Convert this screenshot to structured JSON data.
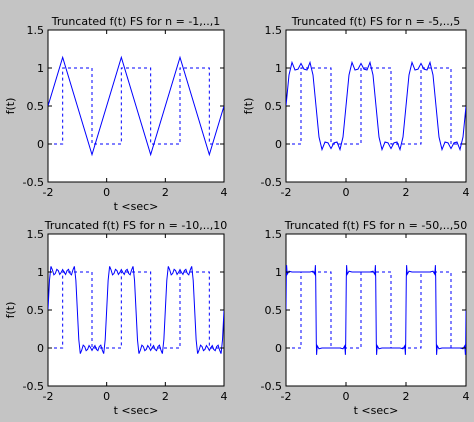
{
  "figure": {
    "background_color": "#c4c4c4",
    "axes_color": "#ffffff",
    "line_color": "#0000ff"
  },
  "chart_data": [
    {
      "type": "line",
      "title": "Truncated f(t) FS for n = -1,..,1",
      "xlabel": "t <sec>",
      "ylabel": "f(t)",
      "xlim": [
        -2,
        4
      ],
      "ylim": [
        -0.5,
        1.5
      ],
      "xticks": [
        "-2",
        "0",
        "2",
        "4"
      ],
      "yticks": [
        "-0.5",
        "0",
        "0.5",
        "1",
        "1.5"
      ],
      "harmonics": 1,
      "series": [
        {
          "style": "dashed",
          "x": [
            -2,
            -1.5,
            -1.5,
            -0.5,
            -0.5,
            0.5,
            0.5,
            1.5,
            1.5,
            2.5,
            2.5,
            3.5,
            3.5,
            4
          ],
          "y": [
            0,
            0,
            1,
            1,
            0,
            0,
            1,
            1,
            0,
            0,
            1,
            1,
            0,
            0
          ]
        },
        {
          "style": "solid",
          "x": [
            -2,
            -1.5,
            -1,
            -0.5,
            0,
            0.5,
            1,
            1.5,
            2,
            2.5,
            3,
            3.5,
            4
          ],
          "y": [
            0.5,
            1.14,
            0.5,
            -0.14,
            0.5,
            1.14,
            0.5,
            -0.14,
            0.5,
            1.14,
            0.5,
            -0.14,
            0.5
          ]
        }
      ]
    },
    {
      "type": "line",
      "title": "Truncated f(t) FS for n = -5,..,5",
      "xlabel": "",
      "ylabel": "f(t)",
      "xlim": [
        -2,
        4
      ],
      "ylim": [
        -0.5,
        1.5
      ],
      "xticks": [
        "-2",
        "0",
        "2",
        "4"
      ],
      "yticks": [
        "-0.5",
        "0",
        "0.5",
        "1",
        "1.5"
      ],
      "harmonics": 5,
      "series": [
        {
          "style": "dashed",
          "x": [
            -2,
            -1.5,
            -1.5,
            -0.5,
            -0.5,
            0.5,
            0.5,
            1.5,
            1.5,
            2.5,
            2.5,
            3.5,
            3.5,
            4
          ],
          "y": [
            0,
            0,
            1,
            1,
            0,
            0,
            1,
            1,
            0,
            0,
            1,
            1,
            0,
            0
          ]
        },
        {
          "style": "solid",
          "x": [
            -2,
            -1.9,
            -1.8,
            -1.7,
            -1.6,
            -1.5,
            -1.4,
            -1.3,
            -1.2,
            -1.1,
            -1,
            -0.9,
            -0.8,
            -0.7,
            -0.6,
            -0.5,
            -0.4,
            -0.3,
            -0.2,
            -0.1,
            0,
            0.1,
            0.2,
            0.3,
            0.4,
            0.5,
            0.6,
            0.7,
            0.8,
            0.9,
            1,
            1.1,
            1.2,
            1.3,
            1.4,
            1.5,
            1.6,
            1.7,
            1.8,
            1.9,
            2,
            2.1,
            2.2,
            2.3,
            2.4,
            2.5,
            2.6,
            2.7,
            2.8,
            2.9,
            3,
            3.1,
            3.2,
            3.3,
            3.4,
            3.5,
            3.6,
            3.7,
            3.8,
            3.9,
            4
          ],
          "y": [
            0.5,
            0.908,
            1.073,
            0.974,
            0.985,
            1.06,
            0.985,
            0.974,
            1.073,
            0.908,
            0.5,
            0.092,
            -0.073,
            0.026,
            0.015,
            -0.06,
            0.015,
            0.026,
            -0.073,
            0.092,
            0.5,
            0.908,
            1.073,
            0.974,
            0.985,
            1.06,
            0.985,
            0.974,
            1.073,
            0.908,
            0.5,
            0.092,
            -0.073,
            0.026,
            0.015,
            -0.06,
            0.015,
            0.026,
            -0.073,
            0.092,
            0.5,
            0.908,
            1.073,
            0.974,
            0.985,
            1.06,
            0.985,
            0.974,
            1.073,
            0.908,
            0.5,
            0.092,
            -0.073,
            0.026,
            0.015,
            -0.06,
            0.015,
            0.026,
            -0.073,
            0.092,
            0.5
          ]
        }
      ]
    },
    {
      "type": "line",
      "title": "Truncated f(t) FS for n = -10,..,10",
      "xlabel": "t <sec>",
      "ylabel": "f(t)",
      "xlim": [
        -2,
        4
      ],
      "ylim": [
        -0.5,
        1.5
      ],
      "xticks": [
        "-2",
        "0",
        "2",
        "4"
      ],
      "yticks": [
        "-0.5",
        "0",
        "0.5",
        "1",
        "1.5"
      ],
      "harmonics": 10,
      "series": [
        {
          "style": "dashed",
          "x": [
            -2,
            -1.5,
            -1.5,
            -0.5,
            -0.5,
            0.5,
            0.5,
            1.5,
            1.5,
            2.5,
            2.5,
            3.5,
            3.5,
            4
          ],
          "y": [
            0,
            0,
            1,
            1,
            0,
            0,
            1,
            1,
            0,
            0,
            1,
            1,
            0,
            0
          ]
        },
        {
          "style": "solid",
          "x": [
            -2,
            -1.95,
            -1.9,
            -1.85,
            -1.8,
            -1.75,
            -1.7,
            -1.65,
            -1.6,
            -1.55,
            -1.5,
            -1.45,
            -1.4,
            -1.35,
            -1.3,
            -1.25,
            -1.2,
            -1.15,
            -1.1,
            -1.05,
            -1,
            -0.95,
            -0.9,
            -0.85,
            -0.8,
            -0.75,
            -0.7,
            -0.65,
            -0.6,
            -0.55,
            -0.5,
            -0.45,
            -0.4,
            -0.35,
            -0.3,
            -0.25,
            -0.2,
            -0.15,
            -0.1,
            -0.05,
            0,
            0.05,
            0.1,
            0.15,
            0.2,
            0.25,
            0.3,
            0.35,
            0.4,
            0.45,
            0.5,
            0.55,
            0.6,
            0.65,
            0.7,
            0.75,
            0.8,
            0.85,
            0.9,
            0.95,
            1,
            1.05,
            1.1,
            1.15,
            1.2,
            1.25,
            1.3,
            1.35,
            1.4,
            1.45,
            1.5,
            1.55,
            1.6,
            1.65,
            1.7,
            1.75,
            1.8,
            1.85,
            1.9,
            1.95,
            2,
            2.05,
            2.1,
            2.15,
            2.2,
            2.25,
            2.3,
            2.35,
            2.4,
            2.45,
            2.5,
            2.55,
            2.6,
            2.65,
            2.7,
            2.75,
            2.8,
            2.85,
            2.9,
            2.95,
            3,
            3.05,
            3.1,
            3.15,
            3.2,
            3.25,
            3.3,
            3.35,
            3.4,
            3.45,
            3.5,
            3.55,
            3.6,
            3.65,
            3.7,
            3.75,
            3.8,
            3.85,
            3.9,
            3.95,
            4
          ],
          "y": [
            0.5,
            0.89,
            1.074,
            1.028,
            0.962,
            0.98,
            1.035,
            1.019,
            0.968,
            0.995,
            1.032,
            0.995,
            0.968,
            1.019,
            1.035,
            0.98,
            0.962,
            1.028,
            1.074,
            0.89,
            0.5,
            0.11,
            -0.074,
            -0.028,
            0.038,
            0.02,
            -0.035,
            -0.019,
            0.032,
            0.005,
            -0.032,
            0.005,
            0.032,
            -0.019,
            -0.035,
            0.02,
            0.038,
            -0.028,
            -0.074,
            0.11,
            0.5,
            0.89,
            1.074,
            1.028,
            0.962,
            0.98,
            1.035,
            1.019,
            0.968,
            0.995,
            1.032,
            0.995,
            0.968,
            1.019,
            1.035,
            0.98,
            0.962,
            1.028,
            1.074,
            0.89,
            0.5,
            0.11,
            -0.074,
            -0.028,
            0.038,
            0.02,
            -0.035,
            -0.019,
            0.032,
            0.005,
            -0.032,
            0.005,
            0.032,
            -0.019,
            -0.035,
            0.02,
            0.038,
            -0.028,
            -0.074,
            0.11,
            0.5,
            0.89,
            1.074,
            1.028,
            0.962,
            0.98,
            1.035,
            1.019,
            0.968,
            0.995,
            1.032,
            0.995,
            0.968,
            1.019,
            1.035,
            0.98,
            0.962,
            1.028,
            1.074,
            0.89,
            0.5,
            0.11,
            -0.074,
            -0.028,
            0.038,
            0.02,
            -0.035,
            -0.019,
            0.032,
            0.005,
            -0.032,
            0.005,
            0.032,
            -0.019,
            -0.035,
            0.02,
            0.038,
            -0.028,
            -0.074,
            0.11,
            0.5
          ]
        }
      ]
    },
    {
      "type": "line",
      "title": "Truncated f(t) FS for n = -50,..,50",
      "xlabel": "t <sec>",
      "ylabel": "",
      "xlim": [
        -2,
        4
      ],
      "ylim": [
        -0.5,
        1.5
      ],
      "xticks": [
        "-2",
        "0",
        "2",
        "4"
      ],
      "yticks": [
        "-0.5",
        "0",
        "0.5",
        "1",
        "1.5"
      ],
      "harmonics": 50,
      "series": [
        {
          "style": "dashed",
          "x": [
            -2,
            -1.5,
            -1.5,
            -0.5,
            -0.5,
            0.5,
            0.5,
            1.5,
            1.5,
            2.5,
            2.5,
            3.5,
            3.5,
            4
          ],
          "y": [
            0,
            0,
            1,
            1,
            0,
            0,
            1,
            1,
            0,
            0,
            1,
            1,
            0,
            0
          ]
        },
        {
          "style": "solid",
          "x": [
            -2,
            -1.99,
            -1.98,
            -1.96,
            -1.9,
            -1.8,
            -1.5,
            -1.2,
            -1.1,
            -1.04,
            -1.02,
            -1.01,
            -1,
            -0.99,
            -0.98,
            -0.96,
            -0.9,
            -0.8,
            -0.5,
            -0.2,
            -0.1,
            -0.04,
            -0.02,
            -0.01,
            0,
            0.01,
            0.02,
            0.04,
            0.1,
            0.2,
            0.5,
            0.8,
            0.9,
            0.96,
            0.98,
            0.99,
            1,
            1.01,
            1.02,
            1.04,
            1.1,
            1.2,
            1.5,
            1.8,
            1.9,
            1.96,
            1.98,
            1.99,
            2,
            2.01,
            2.02,
            2.04,
            2.1,
            2.2,
            2.5,
            2.8,
            2.9,
            2.96,
            2.98,
            2.99,
            3,
            3.01,
            3.02,
            3.04,
            3.1,
            3.2,
            3.5,
            3.8,
            3.9,
            3.96,
            3.98,
            3.99,
            4
          ],
          "y": [
            0.5,
            0.92,
            1.09,
            0.97,
            1.01,
            1,
            1,
            1,
            1.01,
            0.97,
            1.09,
            0.92,
            0.5,
            0.08,
            -0.09,
            0.03,
            -0.01,
            0,
            0,
            0,
            -0.01,
            0.03,
            -0.09,
            0.08,
            0.5,
            0.92,
            1.09,
            0.97,
            1.01,
            1,
            1,
            1,
            1.01,
            0.97,
            1.09,
            0.92,
            0.5,
            0.08,
            -0.09,
            0.03,
            -0.01,
            0,
            0,
            0,
            -0.01,
            0.03,
            -0.09,
            0.08,
            0.5,
            0.92,
            1.09,
            0.97,
            1.01,
            1,
            1,
            1,
            1.01,
            0.97,
            1.09,
            0.92,
            0.5,
            0.08,
            -0.09,
            0.03,
            -0.01,
            0,
            0,
            0,
            -0.01,
            0.03,
            -0.09,
            0.08,
            0.5
          ]
        }
      ]
    }
  ]
}
